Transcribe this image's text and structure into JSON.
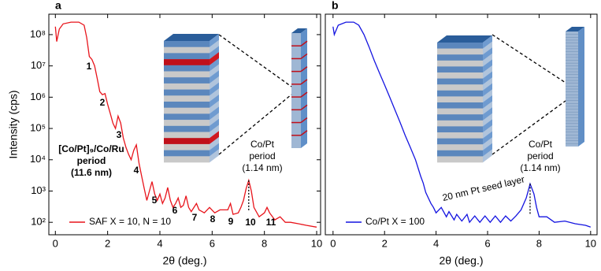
{
  "chart_data": [
    {
      "type": "line",
      "panel_label": "a",
      "ylabel": "Intensity (cps)",
      "xlabel": "2θ (deg.)",
      "x": [
        0.0,
        0.05,
        0.15,
        0.3,
        0.6,
        0.9,
        1.1,
        1.2,
        1.3,
        1.4,
        1.5,
        1.6,
        1.7,
        1.8,
        1.9,
        2.0,
        2.1,
        2.2,
        2.3,
        2.4,
        2.5,
        2.6,
        2.7,
        2.8,
        2.9,
        3.0,
        3.1,
        3.2,
        3.3,
        3.4,
        3.5,
        3.6,
        3.7,
        3.8,
        3.9,
        4.0,
        4.1,
        4.2,
        4.3,
        4.4,
        4.5,
        4.6,
        4.7,
        4.8,
        4.9,
        5.0,
        5.1,
        5.2,
        5.4,
        5.5,
        5.7,
        5.9,
        6.1,
        6.3,
        6.4,
        6.6,
        6.7,
        6.8,
        7.0,
        7.1,
        7.2,
        7.3,
        7.4,
        7.5,
        7.6,
        7.8,
        8.0,
        8.1,
        8.2,
        8.4,
        8.6,
        8.8,
        9.0,
        9.3,
        9.6,
        10.0
      ],
      "series": [
        {
          "name": "SAF X = 10, N = 10",
          "color": "#e8141b",
          "values": [
            180000000,
            60000000,
            150000000,
            220000000,
            250000000,
            250000000,
            200000000,
            80000000,
            20000000,
            16000000,
            10000000,
            4000000,
            1500000,
            1200000,
            1300000,
            600000,
            300000,
            150000,
            100000,
            250000,
            150000,
            50000,
            25000,
            15000,
            10000,
            20000,
            30000,
            8000,
            3000,
            1200,
            500,
            1000,
            2000,
            800,
            500,
            800,
            400,
            600,
            1300,
            500,
            300,
            400,
            600,
            300,
            350,
            700,
            300,
            220,
            400,
            250,
            200,
            300,
            200,
            250,
            250,
            250,
            400,
            180,
            200,
            300,
            500,
            1200,
            2200,
            1000,
            300,
            150,
            200,
            300,
            200,
            120,
            150,
            100,
            100,
            90,
            80,
            70
          ]
        }
      ],
      "xlim": [
        -0.25,
        10.15
      ],
      "ylim": [
        40,
        450000000
      ],
      "log_y": true,
      "xticks": [
        0,
        2,
        4,
        6,
        8,
        10
      ],
      "yticks": [
        {
          "value": 100,
          "label": "10²"
        },
        {
          "value": 1000,
          "label": "10³"
        },
        {
          "value": 10000,
          "label": "10⁴"
        },
        {
          "value": 100000,
          "label": "10⁵"
        },
        {
          "value": 1000000,
          "label": "10⁶"
        },
        {
          "value": 10000000,
          "label": "10⁷"
        },
        {
          "value": 100000000,
          "label": "10⁸"
        }
      ],
      "peak_labels": [
        "1",
        "2",
        "3",
        "4",
        "5",
        "6",
        "7",
        "8",
        "9",
        "10",
        "11"
      ],
      "period_note": [
        "[Co/Pt]₉/Co/Ru",
        "period",
        "(11.6 nm)"
      ],
      "inset_note": [
        "Co/Pt",
        "period",
        "(1.14 nm)"
      ]
    },
    {
      "type": "line",
      "panel_label": "b",
      "xlabel": "2θ (deg.)",
      "x": [
        0.0,
        0.05,
        0.2,
        0.5,
        0.8,
        1.0,
        1.2,
        1.4,
        1.6,
        1.8,
        2.0,
        2.2,
        2.4,
        2.6,
        2.8,
        3.0,
        3.2,
        3.4,
        3.5,
        3.6,
        3.8,
        3.9,
        4.0,
        4.2,
        4.4,
        4.5,
        4.7,
        4.8,
        5.0,
        5.2,
        5.3,
        5.5,
        5.7,
        5.9,
        6.1,
        6.3,
        6.5,
        6.7,
        6.9,
        7.1,
        7.3,
        7.5,
        7.65,
        7.8,
        7.9,
        8.0,
        8.3,
        8.6,
        9.0,
        9.4,
        9.8,
        10.0
      ],
      "series": [
        {
          "name": "Co/Pt X = 100",
          "color": "#1414e0",
          "values": [
            180000000,
            100000000,
            200000000,
            250000000,
            250000000,
            200000000,
            100000000,
            40000000,
            15000000,
            6000000,
            2500000,
            1000000,
            400000,
            160000,
            60000,
            25000,
            10000,
            3000,
            1800,
            900,
            400,
            300,
            200,
            300,
            150,
            220,
            120,
            180,
            110,
            180,
            100,
            160,
            100,
            160,
            100,
            160,
            100,
            160,
            110,
            160,
            250,
            600,
            1700,
            800,
            300,
            150,
            150,
            100,
            110,
            90,
            80,
            70
          ]
        }
      ],
      "xlim": [
        -0.3,
        10.25
      ],
      "ylim": [
        40,
        450000000
      ],
      "log_y": true,
      "xticks": [
        0,
        2,
        4,
        6,
        8,
        10
      ],
      "inset_note": [
        "Co/Pt",
        "period",
        "(1.14 nm)"
      ],
      "seed_note": "20 nm Pt seed layer"
    }
  ]
}
